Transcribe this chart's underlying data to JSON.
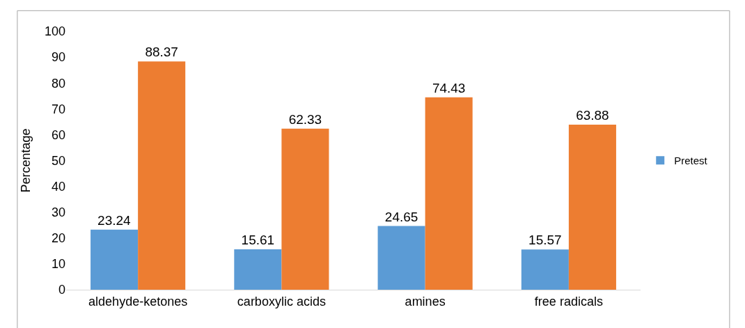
{
  "chart_data": {
    "type": "bar",
    "ylabel": "Percentage",
    "categories": [
      "aldehyde-ketones",
      "carboxylic acids",
      "amines",
      "free radicals"
    ],
    "series": [
      {
        "name": "Pretest",
        "color": "#5b9bd5",
        "values": [
          23.24,
          15.61,
          24.65,
          15.57
        ]
      },
      {
        "color": "#ed7d31",
        "values": [
          88.37,
          62.33,
          74.43,
          63.88
        ]
      }
    ],
    "ylim": [
      0,
      100
    ],
    "yticks": [
      0,
      10,
      20,
      30,
      40,
      50,
      60,
      70,
      80,
      90,
      100
    ],
    "data_labels": true,
    "grid": false,
    "legend": "right"
  }
}
